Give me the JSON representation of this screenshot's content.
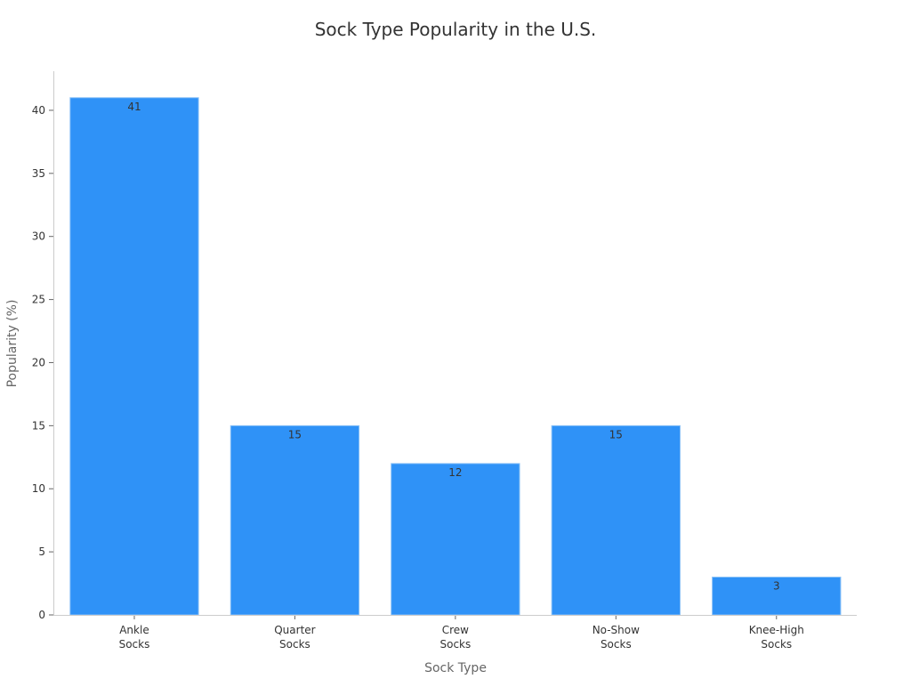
{
  "chart_data": {
    "type": "bar",
    "title": "Sock Type Popularity in the U.S.",
    "xlabel": "Sock Type",
    "ylabel": "Popularity (%)",
    "categories": [
      [
        "Ankle",
        "Socks"
      ],
      [
        "Quarter",
        "Socks"
      ],
      [
        "Crew",
        "Socks"
      ],
      [
        "No-Show",
        "Socks"
      ],
      [
        "Knee-High",
        "Socks"
      ]
    ],
    "values": [
      41,
      15,
      12,
      15,
      3
    ],
    "data_labels": [
      "41",
      "15",
      "12",
      "15",
      "3"
    ],
    "ylim": [
      0,
      43.1
    ],
    "yticks": [
      0,
      5,
      10,
      15,
      20,
      25,
      30,
      35,
      40
    ],
    "grid": false,
    "bar_color": "#2f92f7",
    "bar_edge_color": "#8ec3f7"
  }
}
